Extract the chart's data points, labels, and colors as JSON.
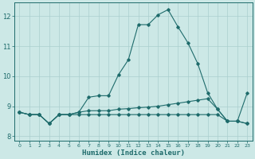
{
  "xlabel": "Humidex (Indice chaleur)",
  "background_color": "#cce8e6",
  "line_color": "#1e6b6b",
  "grid_color": "#aacfce",
  "xlim": [
    -0.5,
    23.5
  ],
  "ylim": [
    7.85,
    12.45
  ],
  "xticks": [
    0,
    1,
    2,
    3,
    4,
    5,
    6,
    7,
    8,
    9,
    10,
    11,
    12,
    13,
    14,
    15,
    16,
    17,
    18,
    19,
    20,
    21,
    22,
    23
  ],
  "yticks": [
    8,
    9,
    10,
    11,
    12
  ],
  "line1_y": [
    8.8,
    8.72,
    8.72,
    8.42,
    8.72,
    8.72,
    8.72,
    8.72,
    8.72,
    8.72,
    8.72,
    8.72,
    8.72,
    8.72,
    8.72,
    8.72,
    8.72,
    8.72,
    8.72,
    8.72,
    8.72,
    8.5,
    8.5,
    8.42
  ],
  "line2_y": [
    8.8,
    8.72,
    8.72,
    8.42,
    8.72,
    8.72,
    8.8,
    8.85,
    8.85,
    8.85,
    8.9,
    8.92,
    8.95,
    8.97,
    9.0,
    9.05,
    9.1,
    9.15,
    9.2,
    9.25,
    8.9,
    8.5,
    8.5,
    8.42
  ],
  "line3_y": [
    8.8,
    8.72,
    8.72,
    8.42,
    8.72,
    8.72,
    8.8,
    9.3,
    9.35,
    9.35,
    10.05,
    10.55,
    11.72,
    11.72,
    12.05,
    12.22,
    11.65,
    11.12,
    10.42,
    9.45,
    8.9,
    8.5,
    8.5,
    9.45
  ]
}
